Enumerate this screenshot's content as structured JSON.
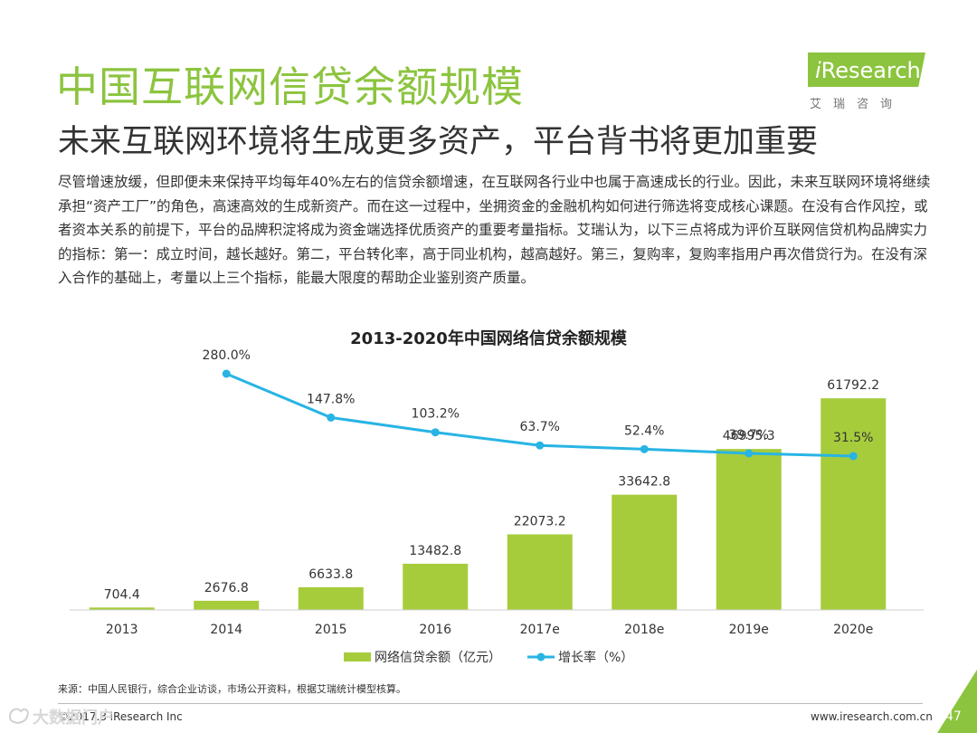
{
  "title": "中国互联网信贷余额规模",
  "subtitle": "未来互联网环境将生成更多资产，平台背书将更加重要",
  "body": "尽管增速放缓，但即便未来保持平均每年40%左右的信贷余额增速，在互联网各行业中也属于高速成长的行业。因此，未来互联网环境将继续承担“资产工厂”的角色，高速高效的生成新资产。而在这一过程中，坐拥资金的金融机构如何进行筛选将变成核心课题。在没有合作风控，或者资本关系的前提下，平台的品牌积淀将成为资金端选择优质资产的重要考量指标。艾瑞认为，以下三点将成为评价互联网信贷机构品牌实力的指标：第一：成立时间，越长越好。第二，平台转化率，高于同业机构，越高越好。第三，复购率，复购率指用户再次借贷行为。在没有深入合作的基础上，考量以上三个指标，能最大限度的帮助企业鉴别资产质量。",
  "logo": {
    "text_i": "i",
    "text_rest": "Research",
    "sub": "艾瑞咨询"
  },
  "chart_data": {
    "type": "bar+line",
    "title": "2013-2020年中国网络信贷余额规模",
    "categories": [
      "2013",
      "2014",
      "2015",
      "2016",
      "2017e",
      "2018e",
      "2019e",
      "2020e"
    ],
    "series": [
      {
        "name": "网络信贷余额（亿元）",
        "type": "bar",
        "values": [
          704.4,
          2676.8,
          6633.8,
          13482.8,
          22073.2,
          33642.8,
          46995.3,
          61792.2
        ],
        "labels": [
          "704.4",
          "2676.8",
          "6633.8",
          "13482.8",
          "22073.2",
          "33642.8",
          "46995.3",
          "61792.2"
        ],
        "color": "#a6cc3c"
      },
      {
        "name": "增长率（%）",
        "type": "line",
        "values": [
          null,
          280.0,
          147.8,
          103.2,
          63.7,
          52.4,
          39.7,
          31.5
        ],
        "labels": [
          "",
          "280.0%",
          "147.8%",
          "103.2%",
          "63.7%",
          "52.4%",
          "39.7%",
          "31.5%"
        ],
        "color": "#28b4e4"
      }
    ],
    "ylim_bar": [
      0,
      65000
    ],
    "legend": "bottom-center"
  },
  "footer": {
    "source": "来源：中国人民银行，综合企业访谈，市场公开资料，根据艾瑞统计模型核算。",
    "copyright": "©2017.3 iResearch Inc",
    "website": "www.iresearch.com.cn",
    "page": "47"
  },
  "watermark": "大数据门户",
  "colors": {
    "brand_green": "#8cc43f",
    "bar": "#a6cc3c",
    "line": "#28b4e4"
  }
}
